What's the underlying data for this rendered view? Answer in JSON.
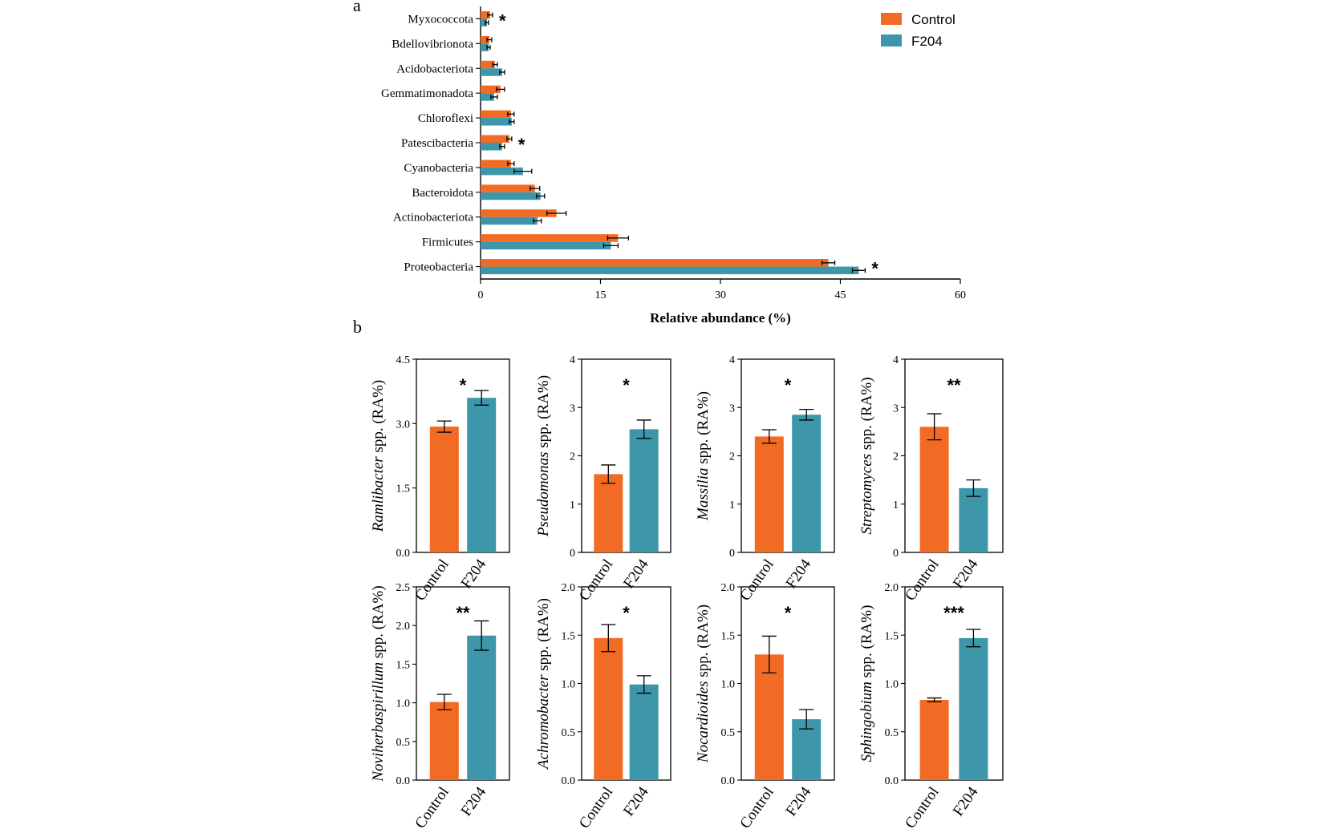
{
  "colors": {
    "control": "#f26b24",
    "f204": "#3e96ab",
    "axis": "#000000"
  },
  "panels": {
    "a": "a",
    "b": "b"
  },
  "chart_data": [
    {
      "id": "a",
      "type": "bar",
      "orientation": "horizontal",
      "categories": [
        "Myxococcota",
        "Bdellovibrionota",
        "Acidobacteriota",
        "Gemmatimonadota",
        "Chloroflexi",
        "Patescibacteria",
        "Cyanobacteria",
        "Bacteroidota",
        "Actinobacteriota",
        "Firmicutes",
        "Proteobacteria"
      ],
      "series": [
        {
          "name": "Control",
          "values": [
            1.2,
            1.1,
            1.8,
            2.5,
            3.8,
            3.6,
            3.8,
            6.8,
            9.5,
            17.2,
            43.5
          ],
          "errors": [
            0.3,
            0.3,
            0.3,
            0.5,
            0.4,
            0.3,
            0.4,
            0.6,
            1.2,
            1.3,
            0.8
          ]
        },
        {
          "name": "F204",
          "values": [
            0.8,
            1.0,
            2.7,
            1.7,
            3.9,
            2.7,
            5.3,
            7.5,
            7.1,
            16.3,
            47.3
          ],
          "errors": [
            0.2,
            0.2,
            0.3,
            0.4,
            0.3,
            0.3,
            1.1,
            0.5,
            0.5,
            0.9,
            0.8
          ]
        }
      ],
      "significance": [
        "*",
        "",
        "",
        "",
        "",
        "*",
        "",
        "",
        "",
        "",
        "*"
      ],
      "xlabel": "Relative abundance (%)",
      "xlim": [
        0,
        60
      ],
      "xticks": [
        "0",
        "15",
        "30",
        "45",
        "60"
      ],
      "legend": [
        "Control",
        "F204"
      ],
      "legend_position": "top-right"
    },
    {
      "id": "b1",
      "type": "bar",
      "categories": [
        "Control",
        "F204"
      ],
      "values": [
        2.93,
        3.6
      ],
      "errors": [
        0.13,
        0.17
      ],
      "significance": "*",
      "ylabel_genus": "Ramlibacter",
      "ylabel_suffix": " spp. (RA%)",
      "ylim": [
        0,
        4.5
      ],
      "yticks": [
        "0.0",
        "1.5",
        "3.0",
        "4.5"
      ]
    },
    {
      "id": "b2",
      "type": "bar",
      "categories": [
        "Control",
        "F204"
      ],
      "values": [
        1.62,
        2.55
      ],
      "errors": [
        0.19,
        0.19
      ],
      "significance": "*",
      "ylabel_genus": "Pseudomonas",
      "ylabel_suffix": " spp. (RA%)",
      "ylim": [
        0,
        4
      ],
      "yticks": [
        "0",
        "1",
        "2",
        "3",
        "4"
      ]
    },
    {
      "id": "b3",
      "type": "bar",
      "categories": [
        "Control",
        "F204"
      ],
      "values": [
        2.4,
        2.85
      ],
      "errors": [
        0.14,
        0.11
      ],
      "significance": "*",
      "ylabel_genus": "Massilia",
      "ylabel_suffix": " spp. (RA%)",
      "ylim": [
        0,
        4
      ],
      "yticks": [
        "0",
        "1",
        "2",
        "3",
        "4"
      ]
    },
    {
      "id": "b4",
      "type": "bar",
      "categories": [
        "Control",
        "F204"
      ],
      "values": [
        2.6,
        1.33
      ],
      "errors": [
        0.27,
        0.17
      ],
      "significance": "**",
      "ylabel_genus": "Streptomyces",
      "ylabel_suffix": " spp. (RA%)",
      "ylim": [
        0,
        4
      ],
      "yticks": [
        "0",
        "1",
        "2",
        "3",
        "4"
      ]
    },
    {
      "id": "b5",
      "type": "bar",
      "categories": [
        "Control",
        "F204"
      ],
      "values": [
        1.01,
        1.87
      ],
      "errors": [
        0.1,
        0.19
      ],
      "significance": "**",
      "ylabel_genus": "Noviherbaspirillum",
      "ylabel_suffix": " spp. (RA%)",
      "ylim": [
        0,
        2.5
      ],
      "yticks": [
        "0.0",
        "0.5",
        "1.0",
        "1.5",
        "2.0",
        "2.5"
      ]
    },
    {
      "id": "b6",
      "type": "bar",
      "categories": [
        "Control",
        "F204"
      ],
      "values": [
        1.47,
        0.99
      ],
      "errors": [
        0.14,
        0.09
      ],
      "significance": "*",
      "ylabel_genus": "Achromobacter",
      "ylabel_suffix": " spp. (RA%)",
      "ylim": [
        0,
        2.0
      ],
      "yticks": [
        "0.0",
        "0.5",
        "1.0",
        "1.5",
        "2.0"
      ]
    },
    {
      "id": "b7",
      "type": "bar",
      "categories": [
        "Control",
        "F204"
      ],
      "values": [
        1.3,
        0.63
      ],
      "errors": [
        0.19,
        0.1
      ],
      "significance": "*",
      "ylabel_genus": "Nocardioides",
      "ylabel_suffix": " spp. (RA%)",
      "ylim": [
        0,
        2.0
      ],
      "yticks": [
        "0.0",
        "0.5",
        "1.0",
        "1.5",
        "2.0"
      ]
    },
    {
      "id": "b8",
      "type": "bar",
      "categories": [
        "Control",
        "F204"
      ],
      "values": [
        0.83,
        1.47
      ],
      "errors": [
        0.02,
        0.09
      ],
      "significance": "***",
      "ylabel_genus": "Sphingobium",
      "ylabel_suffix": " spp. (RA%)",
      "ylim": [
        0,
        2.0
      ],
      "yticks": [
        "0.0",
        "0.5",
        "1.0",
        "1.5",
        "2.0"
      ]
    }
  ]
}
